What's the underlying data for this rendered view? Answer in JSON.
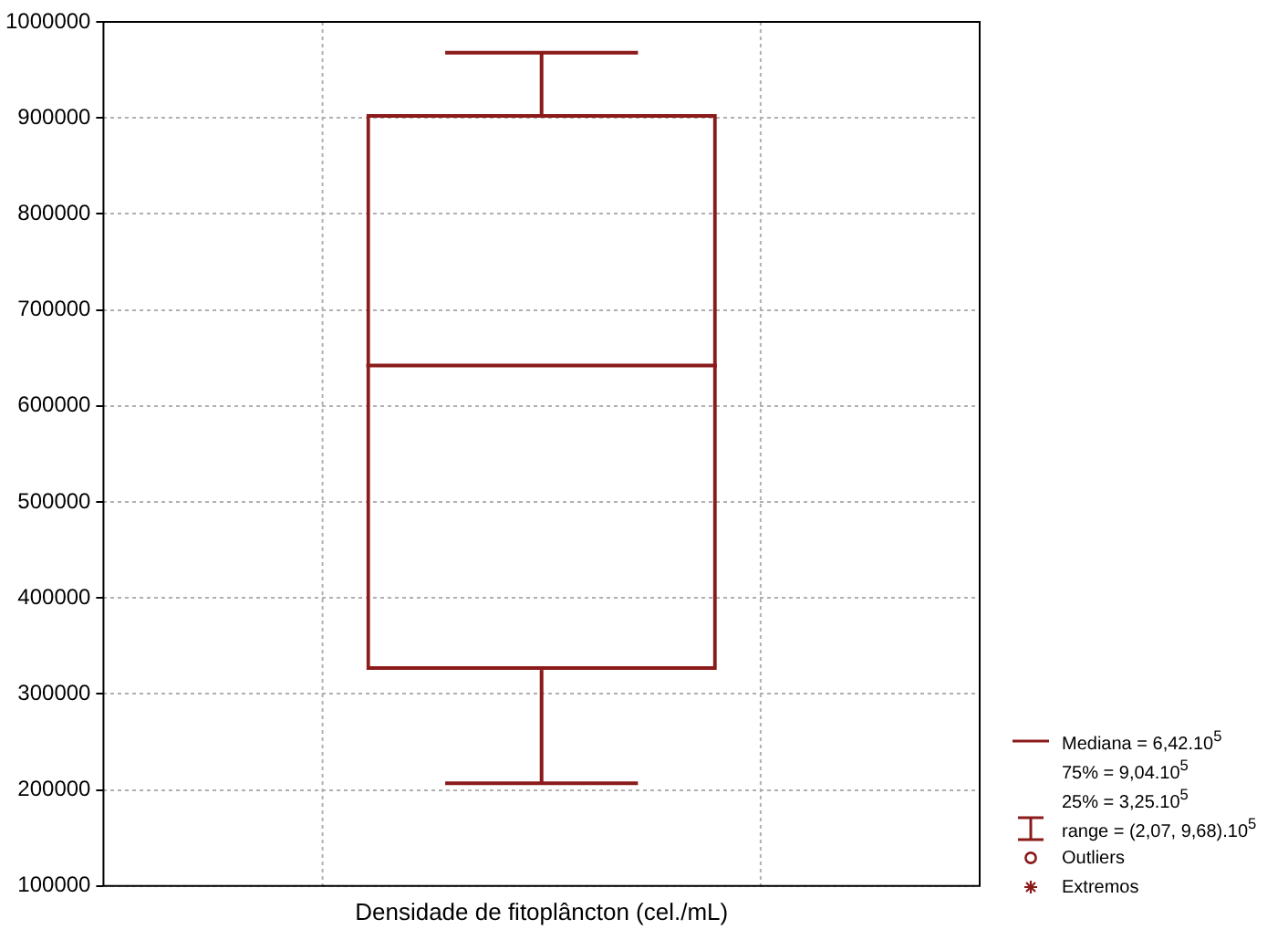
{
  "chart_data": {
    "type": "box",
    "categories": [
      "Densidade de fitoplâncton (cel./mL)"
    ],
    "boxes": [
      {
        "low": 207000,
        "q1": 325000,
        "median": 642000,
        "q3": 904000,
        "high": 968000
      }
    ],
    "color": "#8b1a1a",
    "ylim": [
      100000,
      1000000
    ],
    "yticks": [
      100000,
      200000,
      300000,
      400000,
      500000,
      600000,
      700000,
      800000,
      900000,
      1000000
    ],
    "grid": true,
    "annotations": [
      "Mediana = 6,42.10$^{5}$",
      "75% = 9,04.10$^{5}$",
      "25% = 3,25.10$^{5}$",
      "range = (2,07, 9,68).10$^{5}$",
      "Outliers",
      "Extremos"
    ]
  }
}
